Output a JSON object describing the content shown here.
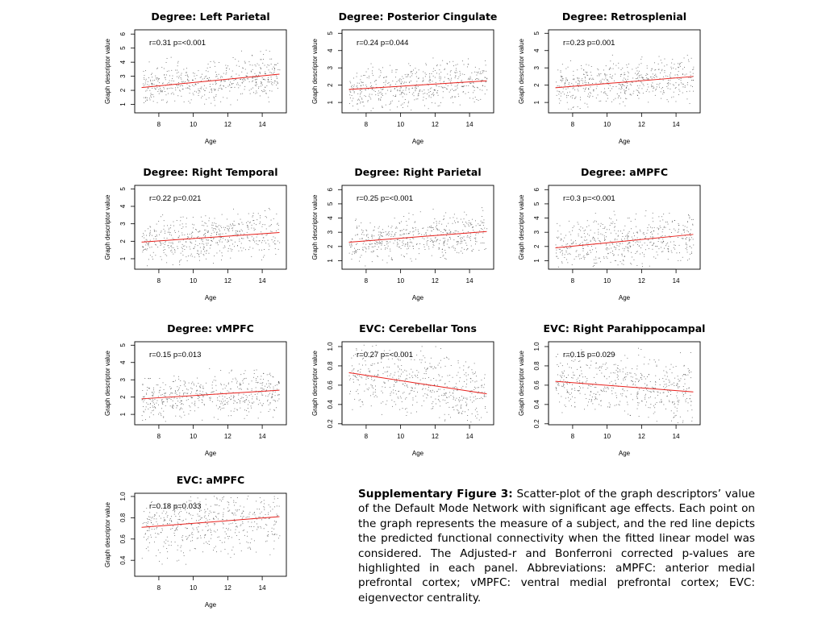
{
  "chart_data": [
    {
      "type": "scatter",
      "title": "Degree: Left Parietal",
      "xlabel": "Age",
      "ylabel": "Graph descriptor value",
      "xlim": [
        6.6,
        15.4
      ],
      "ylim": [
        0.4,
        6.3
      ],
      "xticks": [
        8,
        10,
        12,
        14
      ],
      "yticks": [
        1,
        2,
        3,
        4,
        5,
        6
      ],
      "annotation": "r=0.31  p=<0.001",
      "fit_line": {
        "x": [
          7,
          15
        ],
        "y": [
          2.2,
          3.15
        ]
      },
      "y_center": 2.6,
      "y_spread": 0.7
    },
    {
      "type": "scatter",
      "title": "Degree: Posterior Cingulate",
      "xlabel": "Age",
      "ylabel": "Graph descriptor value",
      "xlim": [
        6.6,
        15.4
      ],
      "ylim": [
        0.4,
        5.2
      ],
      "xticks": [
        8,
        10,
        12,
        14
      ],
      "yticks": [
        1,
        2,
        3,
        4,
        5
      ],
      "annotation": "r=0.24  p=0.044",
      "fit_line": {
        "x": [
          7,
          15
        ],
        "y": [
          1.75,
          2.25
        ]
      },
      "y_center": 2.0,
      "y_spread": 0.6
    },
    {
      "type": "scatter",
      "title": "Degree: Retrosplenial",
      "xlabel": "Age",
      "ylabel": "Graph descriptor value",
      "xlim": [
        6.6,
        15.4
      ],
      "ylim": [
        0.4,
        5.2
      ],
      "xticks": [
        8,
        10,
        12,
        14
      ],
      "yticks": [
        1,
        2,
        3,
        4,
        5
      ],
      "annotation": "r=0.23  p=0.001",
      "fit_line": {
        "x": [
          7,
          15
        ],
        "y": [
          1.85,
          2.5
        ]
      },
      "y_center": 2.2,
      "y_spread": 0.6
    },
    {
      "type": "scatter",
      "title": "Degree: Right Temporal",
      "xlabel": "Age",
      "ylabel": "Graph descriptor value",
      "xlim": [
        6.6,
        15.4
      ],
      "ylim": [
        0.4,
        5.2
      ],
      "xticks": [
        8,
        10,
        12,
        14
      ],
      "yticks": [
        1,
        2,
        3,
        4,
        5
      ],
      "annotation": "r=0.22  p=0.021",
      "fit_line": {
        "x": [
          7,
          15
        ],
        "y": [
          1.95,
          2.5
        ]
      },
      "y_center": 2.2,
      "y_spread": 0.6
    },
    {
      "type": "scatter",
      "title": "Degree: Right Parietal",
      "xlabel": "Age",
      "ylabel": "Graph descriptor value",
      "xlim": [
        6.6,
        15.4
      ],
      "ylim": [
        0.4,
        6.3
      ],
      "xticks": [
        8,
        10,
        12,
        14
      ],
      "yticks": [
        1,
        2,
        3,
        4,
        5,
        6
      ],
      "annotation": "r=0.25  p=<0.001",
      "fit_line": {
        "x": [
          7,
          15
        ],
        "y": [
          2.3,
          3.05
        ]
      },
      "y_center": 2.6,
      "y_spread": 0.7
    },
    {
      "type": "scatter",
      "title": "Degree: aMPFC",
      "xlabel": "Age",
      "ylabel": "Graph descriptor value",
      "xlim": [
        6.6,
        15.4
      ],
      "ylim": [
        0.4,
        6.3
      ],
      "xticks": [
        8,
        10,
        12,
        14
      ],
      "yticks": [
        1,
        2,
        3,
        4,
        5,
        6
      ],
      "annotation": "r=0.3  p=<0.001",
      "fit_line": {
        "x": [
          7,
          15
        ],
        "y": [
          1.9,
          2.85
        ]
      },
      "y_center": 2.4,
      "y_spread": 0.8
    },
    {
      "type": "scatter",
      "title": "Degree: vMPFC",
      "xlabel": "Age",
      "ylabel": "Graph descriptor value",
      "xlim": [
        6.6,
        15.4
      ],
      "ylim": [
        0.4,
        5.2
      ],
      "xticks": [
        8,
        10,
        12,
        14
      ],
      "yticks": [
        1,
        2,
        3,
        4,
        5
      ],
      "annotation": "r=0.15  p=0.013",
      "fit_line": {
        "x": [
          7,
          15
        ],
        "y": [
          1.9,
          2.4
        ]
      },
      "y_center": 2.1,
      "y_spread": 0.6
    },
    {
      "type": "scatter",
      "title": "EVC: Cerebellar Tons",
      "xlabel": "Age",
      "ylabel": "Graph descriptor value",
      "xlim": [
        6.6,
        15.4
      ],
      "ylim": [
        0.19,
        1.05
      ],
      "xticks": [
        8,
        10,
        12,
        14
      ],
      "yticks": [
        0.2,
        0.4,
        0.6,
        0.8,
        1.0
      ],
      "annotation": "r=0.27  p=<0.001",
      "fit_line": {
        "x": [
          7,
          15
        ],
        "y": [
          0.73,
          0.51
        ]
      },
      "y_center": 0.62,
      "y_spread": 0.15
    },
    {
      "type": "scatter",
      "title": "EVC: Right Parahippocampal",
      "xlabel": "Age",
      "ylabel": "Graph descriptor value",
      "xlim": [
        6.6,
        15.4
      ],
      "ylim": [
        0.19,
        1.05
      ],
      "xticks": [
        8,
        10,
        12,
        14
      ],
      "yticks": [
        0.2,
        0.4,
        0.6,
        0.8,
        1.0
      ],
      "annotation": "r=0.15  p=0.029",
      "fit_line": {
        "x": [
          7,
          15
        ],
        "y": [
          0.64,
          0.53
        ]
      },
      "y_center": 0.58,
      "y_spread": 0.15
    },
    {
      "type": "scatter",
      "title": "EVC: aMPFC",
      "xlabel": "Age",
      "ylabel": "Graph descriptor value",
      "xlim": [
        6.6,
        15.4
      ],
      "ylim": [
        0.25,
        1.03
      ],
      "xticks": [
        8,
        10,
        12,
        14
      ],
      "yticks": [
        0.4,
        0.6,
        0.8,
        1.0
      ],
      "annotation": "r=0.18  p=0.033",
      "fit_line": {
        "x": [
          7,
          15
        ],
        "y": [
          0.71,
          0.81
        ]
      },
      "y_center": 0.76,
      "y_spread": 0.15
    }
  ],
  "caption": {
    "label": "Supplementary Figure 3:",
    "text": " Scatter-plot of the graph descriptors’ value of the Default Mode Network with significant age effects. Each point on the graph represents the measure of a subject, and the red line depicts the predicted functional connectivity when the fitted linear model was considered. The Adjusted-r and Bonferroni corrected p-values are highlighted in each panel. Abbreviations: aMPFC: anterior medial prefrontal cortex; vMPFC: ventral medial prefrontal cortex; EVC: eigenvector centrality."
  },
  "colors": {
    "fit_line": "#e8201c",
    "points": "#333333",
    "axis": "#000000"
  }
}
